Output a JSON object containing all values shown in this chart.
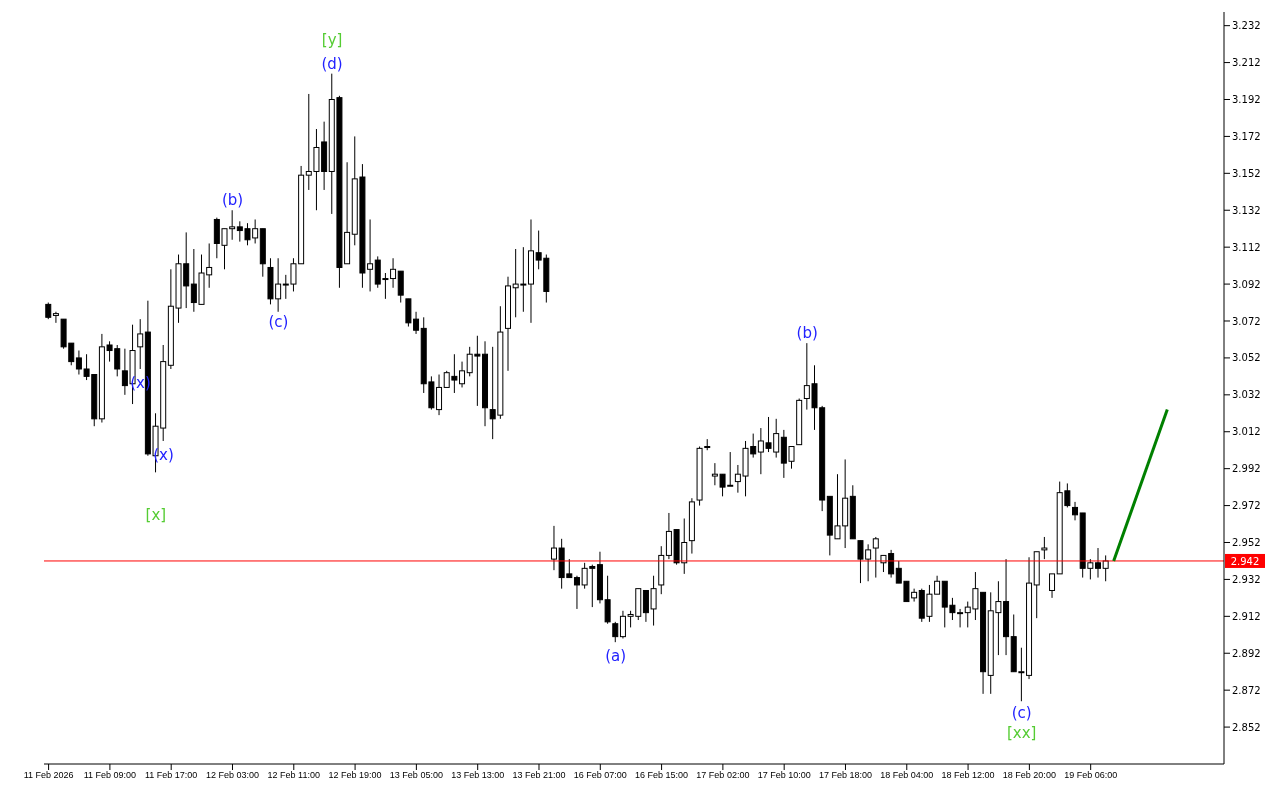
{
  "chart_data": {
    "type": "candlestick",
    "categories": [
      "11 Feb 2026",
      null,
      null,
      null,
      null,
      null,
      null,
      null,
      "11 Feb 09:00",
      null,
      null,
      null,
      null,
      null,
      null,
      null,
      "11 Feb 17:00",
      null,
      null,
      null,
      null,
      null,
      null,
      null,
      "12 Feb 03:00",
      null,
      null,
      null,
      null,
      null,
      null,
      null,
      "12 Feb 11:00",
      null,
      null,
      null,
      null,
      null,
      null,
      null,
      "12 Feb 19:00",
      null,
      null,
      null,
      null,
      null,
      null,
      null,
      "13 Feb 05:00",
      null,
      null,
      null,
      null,
      null,
      null,
      null,
      "13 Feb 13:00",
      null,
      null,
      null,
      null,
      null,
      null,
      null,
      "13 Feb 21:00",
      null,
      null,
      null,
      null,
      null,
      null,
      null,
      "16 Feb 07:00",
      null,
      null,
      null,
      null,
      null,
      null,
      null,
      "16 Feb 15:00",
      null,
      null,
      null,
      null,
      null,
      null,
      null,
      "17 Feb 02:00",
      null,
      null,
      null,
      null,
      null,
      null,
      null,
      "17 Feb 10:00",
      null,
      null,
      null,
      null,
      null,
      null,
      null,
      "17 Feb 18:00",
      null,
      null,
      null,
      null,
      null,
      null,
      null,
      "18 Feb 04:00",
      null,
      null,
      null,
      null,
      null,
      null,
      null,
      "18 Feb 12:00",
      null,
      null,
      null,
      null,
      null,
      null,
      null,
      "18 Feb 20:00",
      null,
      null,
      null,
      null,
      null,
      null,
      null,
      "19 Feb 06:00",
      null,
      null,
      null,
      null,
      null,
      null,
      null,
      null,
      null,
      null,
      null,
      null,
      null,
      null,
      null,
      null,
      null
    ],
    "ohlc": [
      [
        3.081,
        3.082,
        3.073,
        3.074
      ],
      [
        3.075,
        3.077,
        3.071,
        3.076
      ],
      [
        3.073,
        3.073,
        3.057,
        3.058
      ],
      [
        3.06,
        3.06,
        3.048,
        3.05
      ],
      [
        3.052,
        3.056,
        3.043,
        3.046
      ],
      [
        3.046,
        3.054,
        3.04,
        3.042
      ],
      [
        3.043,
        3.043,
        3.015,
        3.019
      ],
      [
        3.019,
        3.065,
        3.017,
        3.058
      ],
      [
        3.059,
        3.061,
        3.05,
        3.056
      ],
      [
        3.057,
        3.059,
        3.042,
        3.046
      ],
      [
        3.045,
        3.057,
        3.032,
        3.037
      ],
      [
        3.038,
        3.07,
        3.027,
        3.056
      ],
      [
        3.058,
        3.073,
        3.046,
        3.065
      ],
      [
        3.066,
        3.083,
        2.999,
        3.0
      ],
      [
        2.999,
        3.022,
        2.99,
        3.015
      ],
      [
        3.014,
        3.059,
        3.007,
        3.05
      ],
      [
        3.048,
        3.1,
        3.046,
        3.08
      ],
      [
        3.079,
        3.108,
        3.071,
        3.103
      ],
      [
        3.103,
        3.12,
        3.079,
        3.091
      ],
      [
        3.092,
        3.111,
        3.077,
        3.082
      ],
      [
        3.081,
        3.108,
        3.081,
        3.098
      ],
      [
        3.097,
        3.114,
        3.09,
        3.101
      ],
      [
        3.127,
        3.128,
        3.106,
        3.114
      ],
      [
        3.113,
        3.122,
        3.1,
        3.122
      ],
      [
        3.122,
        3.132,
        3.116,
        3.123
      ],
      [
        3.123,
        3.126,
        3.115,
        3.121
      ],
      [
        3.122,
        3.125,
        3.113,
        3.116
      ],
      [
        3.117,
        3.127,
        3.114,
        3.122
      ],
      [
        3.122,
        3.122,
        3.096,
        3.103
      ],
      [
        3.101,
        3.106,
        3.081,
        3.084
      ],
      [
        3.084,
        3.106,
        3.077,
        3.092
      ],
      [
        3.092,
        3.097,
        3.084,
        3.092
      ],
      [
        3.092,
        3.106,
        3.088,
        3.103
      ],
      [
        3.103,
        3.156,
        3.103,
        3.151
      ],
      [
        3.151,
        3.195,
        3.143,
        3.153
      ],
      [
        3.153,
        3.176,
        3.132,
        3.166
      ],
      [
        3.169,
        3.18,
        3.143,
        3.153
      ],
      [
        3.153,
        3.206,
        3.13,
        3.192
      ],
      [
        3.193,
        3.194,
        3.09,
        3.101
      ],
      [
        3.103,
        3.158,
        3.103,
        3.12
      ],
      [
        3.119,
        3.172,
        3.113,
        3.149
      ],
      [
        3.15,
        3.157,
        3.09,
        3.098
      ],
      [
        3.1,
        3.127,
        3.088,
        3.103
      ],
      [
        3.105,
        3.107,
        3.09,
        3.092
      ],
      [
        3.095,
        3.098,
        3.084,
        3.095
      ],
      [
        3.095,
        3.106,
        3.09,
        3.1
      ],
      [
        3.099,
        3.099,
        3.082,
        3.086
      ],
      [
        3.084,
        3.084,
        3.069,
        3.071
      ],
      [
        3.073,
        3.077,
        3.065,
        3.067
      ],
      [
        3.068,
        3.074,
        3.033,
        3.038
      ],
      [
        3.039,
        3.042,
        3.024,
        3.025
      ],
      [
        3.024,
        3.043,
        3.021,
        3.036
      ],
      [
        3.036,
        3.045,
        3.036,
        3.044
      ],
      [
        3.042,
        3.054,
        3.033,
        3.04
      ],
      [
        3.038,
        3.05,
        3.036,
        3.045
      ],
      [
        3.044,
        3.058,
        3.042,
        3.054
      ],
      [
        3.054,
        3.064,
        3.026,
        3.053
      ],
      [
        3.054,
        3.061,
        3.015,
        3.025
      ],
      [
        3.024,
        3.058,
        3.008,
        3.019
      ],
      [
        3.021,
        3.08,
        3.019,
        3.066
      ],
      [
        3.068,
        3.096,
        3.045,
        3.091
      ],
      [
        3.09,
        3.111,
        3.074,
        3.092
      ],
      [
        3.092,
        3.112,
        3.077,
        3.092
      ],
      [
        3.092,
        3.127,
        3.071,
        3.11
      ],
      [
        3.109,
        3.121,
        3.1,
        3.105
      ],
      [
        3.106,
        3.108,
        3.082,
        3.088
      ],
      [
        2.943,
        2.961,
        2.937,
        2.949
      ],
      [
        2.949,
        2.954,
        2.927,
        2.933
      ],
      [
        2.935,
        2.943,
        2.933,
        2.933
      ],
      [
        2.933,
        2.934,
        2.916,
        2.929
      ],
      [
        2.929,
        2.941,
        2.927,
        2.938
      ],
      [
        2.939,
        2.94,
        2.917,
        2.938
      ],
      [
        2.94,
        2.947,
        2.919,
        2.921
      ],
      [
        2.921,
        2.934,
        2.908,
        2.909
      ],
      [
        2.908,
        2.909,
        2.898,
        2.901
      ],
      [
        2.901,
        2.915,
        2.9,
        2.912
      ],
      [
        2.912,
        2.915,
        2.906,
        2.913
      ],
      [
        2.912,
        2.927,
        2.91,
        2.927
      ],
      [
        2.926,
        2.926,
        2.909,
        2.914
      ],
      [
        2.916,
        2.934,
        2.907,
        2.927
      ],
      [
        2.929,
        2.95,
        2.924,
        2.945
      ],
      [
        2.945,
        2.968,
        2.943,
        2.958
      ],
      [
        2.959,
        2.959,
        2.94,
        2.941
      ],
      [
        2.941,
        2.965,
        2.935,
        2.952
      ],
      [
        2.953,
        2.976,
        2.946,
        2.974
      ],
      [
        2.975,
        3.004,
        2.972,
        3.003
      ],
      [
        3.004,
        3.008,
        3.002,
        3.004
      ],
      [
        2.988,
        2.995,
        2.983,
        2.989
      ],
      [
        2.989,
        2.989,
        2.977,
        2.982
      ],
      [
        2.983,
        3.001,
        2.983,
        2.983
      ],
      [
        2.985,
        2.994,
        2.979,
        2.989
      ],
      [
        2.988,
        3.007,
        2.977,
        3.003
      ],
      [
        3.004,
        3.011,
        2.998,
        3.0
      ],
      [
        3.001,
        3.014,
        2.989,
        3.007
      ],
      [
        3.006,
        3.02,
        3.001,
        3.003
      ],
      [
        3.001,
        3.019,
        2.998,
        3.011
      ],
      [
        3.009,
        3.013,
        2.987,
        2.995
      ],
      [
        2.996,
        3.004,
        2.992,
        3.004
      ],
      [
        3.005,
        3.03,
        3.005,
        3.029
      ],
      [
        3.03,
        3.06,
        3.024,
        3.037
      ],
      [
        3.038,
        3.048,
        3.013,
        3.025
      ],
      [
        3.025,
        3.026,
        2.969,
        2.975
      ],
      [
        2.977,
        2.977,
        2.945,
        2.956
      ],
      [
        2.954,
        2.989,
        2.954,
        2.961
      ],
      [
        2.961,
        2.997,
        2.949,
        2.976
      ],
      [
        2.977,
        2.983,
        2.954,
        2.954
      ],
      [
        2.953,
        2.953,
        2.93,
        2.943
      ],
      [
        2.943,
        2.951,
        2.931,
        2.948
      ],
      [
        2.949,
        2.955,
        2.933,
        2.954
      ],
      [
        2.941,
        2.945,
        2.936,
        2.945
      ],
      [
        2.946,
        2.948,
        2.933,
        2.935
      ],
      [
        2.938,
        2.942,
        2.93,
        2.93
      ],
      [
        2.931,
        2.931,
        2.92,
        2.92
      ],
      [
        2.922,
        2.927,
        2.92,
        2.925
      ],
      [
        2.926,
        2.927,
        2.909,
        2.911
      ],
      [
        2.912,
        2.929,
        2.909,
        2.924
      ],
      [
        2.924,
        2.934,
        2.924,
        2.931
      ],
      [
        2.931,
        2.931,
        2.906,
        2.917
      ],
      [
        2.918,
        2.922,
        2.91,
        2.914
      ],
      [
        2.914,
        2.916,
        2.906,
        2.914
      ],
      [
        2.914,
        2.92,
        2.906,
        2.917
      ],
      [
        2.916,
        2.936,
        2.91,
        2.927
      ],
      [
        2.925,
        2.925,
        2.87,
        2.882
      ],
      [
        2.88,
        2.925,
        2.87,
        2.915
      ],
      [
        2.914,
        2.931,
        2.891,
        2.92
      ],
      [
        2.92,
        2.943,
        2.891,
        2.901
      ],
      [
        2.901,
        2.913,
        2.882,
        2.882
      ],
      [
        2.882,
        2.895,
        2.866,
        2.882
      ],
      [
        2.88,
        2.944,
        2.878,
        2.93
      ],
      [
        2.929,
        2.947,
        2.911,
        2.947
      ],
      [
        2.948,
        2.955,
        2.943,
        2.949
      ],
      [
        2.926,
        2.935,
        2.922,
        2.935
      ],
      [
        2.935,
        2.985,
        2.935,
        2.979
      ],
      [
        2.98,
        2.984,
        2.971,
        2.972
      ],
      [
        2.971,
        2.974,
        2.964,
        2.967
      ],
      [
        2.968,
        2.968,
        2.933,
        2.938
      ],
      [
        2.938,
        2.943,
        2.932,
        2.941
      ],
      [
        2.941,
        2.949,
        2.933,
        2.938
      ],
      [
        2.938,
        2.945,
        2.931,
        2.942
      ],
      null,
      null,
      null,
      null,
      null,
      null,
      null,
      null,
      null,
      null,
      null,
      null,
      null,
      null,
      null
    ],
    "series": [
      {
        "type": "line",
        "color": "#008000",
        "values": [
          null,
          null,
          null,
          null,
          null,
          null,
          null,
          null,
          null,
          null,
          null,
          null,
          null,
          null,
          null,
          null,
          null,
          null,
          null,
          null,
          null,
          null,
          null,
          null,
          null,
          null,
          null,
          null,
          null,
          null,
          null,
          null,
          null,
          null,
          null,
          null,
          null,
          null,
          null,
          null,
          null,
          null,
          null,
          null,
          null,
          null,
          null,
          null,
          null,
          null,
          null,
          null,
          null,
          null,
          null,
          null,
          null,
          null,
          null,
          null,
          null,
          null,
          null,
          null,
          null,
          null,
          null,
          null,
          null,
          null,
          null,
          null,
          null,
          null,
          null,
          null,
          null,
          null,
          null,
          null,
          null,
          null,
          null,
          null,
          null,
          null,
          null,
          null,
          null,
          null,
          null,
          null,
          null,
          null,
          null,
          null,
          null,
          null,
          null,
          null,
          null,
          null,
          null,
          null,
          null,
          null,
          null,
          null,
          null,
          null,
          null,
          null,
          null,
          null,
          null,
          null,
          null,
          null,
          null,
          null,
          null,
          null,
          null,
          null,
          null,
          null,
          null,
          null,
          null,
          null,
          null,
          null,
          null,
          null,
          null,
          null,
          null,
          null,
          null,
          2.942,
          null,
          null,
          null,
          null,
          null,
          null,
          3.024,
          null,
          null,
          null,
          null,
          null,
          null,
          null
        ]
      }
    ],
    "ylim": [
      2.832,
      3.2394
    ],
    "yticks": [
      2.852,
      2.872,
      2.892,
      2.912,
      2.932,
      2.952,
      2.972,
      2.992,
      3.012,
      3.032,
      3.052,
      3.072,
      3.092,
      3.112,
      3.132,
      3.152,
      3.172,
      3.192,
      3.212,
      3.232
    ],
    "ref_lines": [
      {
        "axis": "y",
        "value": 2.942,
        "label": "2.942",
        "color": "#ff0000"
      }
    ],
    "annotations": [
      "[y]",
      "(d)",
      "(b)",
      "(c)",
      "(x)",
      "(x)",
      "[x]",
      "(a)",
      "(b)",
      "(c)",
      "[xx]"
    ],
    "grid": false,
    "legend": false
  }
}
